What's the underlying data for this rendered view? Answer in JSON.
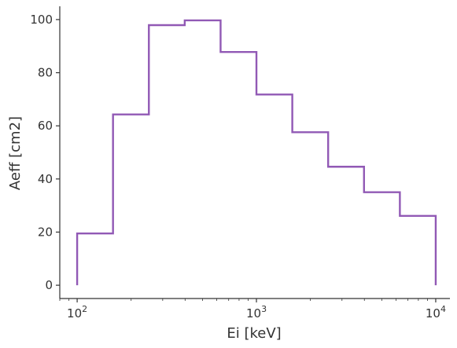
{
  "chart_data": {
    "type": "line",
    "drawstyle": "step-histogram",
    "xlabel": "Ei [keV]",
    "ylabel": "Aeff [cm2]",
    "xscale": "log",
    "xlim": [
      80,
      12000
    ],
    "ylim": [
      -5,
      105
    ],
    "grid": false,
    "line_color": "#9159b5",
    "bin_edges": [
      100,
      158.5,
      251.2,
      398.1,
      631.0,
      1000,
      1584.9,
      2511.9,
      3981.1,
      6309.6,
      10000
    ],
    "values": [
      19.5,
      64.3,
      97.9,
      99.7,
      87.8,
      71.8,
      57.6,
      44.6,
      35.0,
      26.1
    ],
    "y_ticks": [
      0,
      20,
      40,
      60,
      80,
      100
    ],
    "x_ticks": [
      {
        "value": 100,
        "base": "10",
        "exp": "2"
      },
      {
        "value": 1000,
        "base": "10",
        "exp": "3"
      },
      {
        "value": 10000,
        "base": "10",
        "exp": "4"
      }
    ]
  }
}
